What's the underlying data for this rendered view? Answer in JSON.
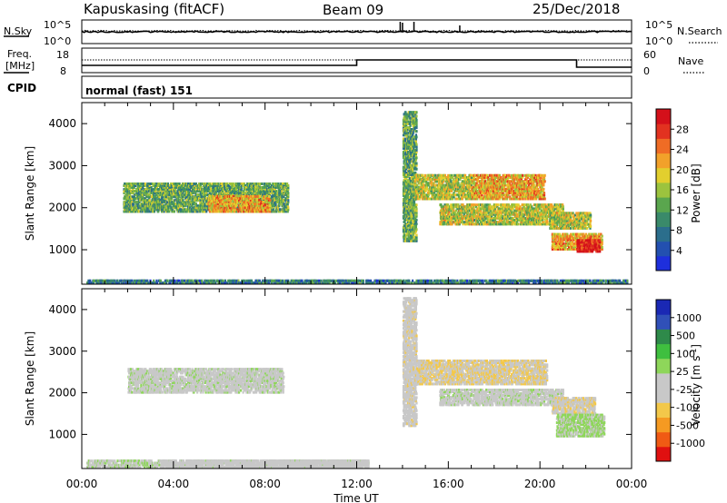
{
  "header": {
    "station": "Kapuskasing (fitACF)",
    "beam": "Beam 09",
    "date": "25/Dec/2018"
  },
  "strips": {
    "nsky_label": "N.Sky",
    "nsky_ticks": [
      "10^5",
      "10^0"
    ],
    "nsearch_label": "N.Search",
    "nsearch_ticks": [
      "10^5",
      "10^0"
    ],
    "freq_label_line1": "Freq.",
    "freq_label_line2": "[MHz]",
    "freq_ticks": [
      "18",
      "8"
    ],
    "nave_label": "Nave",
    "nave_ticks": [
      "60",
      "0"
    ],
    "cpid_label": "CPID",
    "cpid_value": "normal (fast) 151"
  },
  "colors": {
    "power": [
      "#1e2fdc",
      "#2350b0",
      "#2b6e8c",
      "#3a8a6a",
      "#5aa64e",
      "#9cc33e",
      "#e2cf2e",
      "#f2a12a",
      "#ef6c25",
      "#e23220",
      "#d4101a"
    ],
    "velocity": [
      "#e01010",
      "#f05a14",
      "#f59a22",
      "#f3c84a",
      "#c8c8c8",
      "#c8c8c8",
      "#8ed65a",
      "#3fbf3f",
      "#2e8a4a",
      "#3050b8",
      "#1a28b4"
    ]
  },
  "chart_data": [
    {
      "type": "heatmap",
      "title": "",
      "xlabel": "Time UT",
      "ylabel": "Slant Range [km]",
      "xticks": [
        "00:00",
        "04:00",
        "08:00",
        "12:00",
        "16:00",
        "20:00",
        "00:00"
      ],
      "xlim_hours": [
        0,
        24
      ],
      "yticks": [
        "1000",
        "2000",
        "3000",
        "4000"
      ],
      "ylim": [
        180,
        4500
      ],
      "colorbar_label": "Power [dB]",
      "colorbar_ticks": [
        "4",
        "8",
        "12",
        "16",
        "20",
        "24",
        "28"
      ],
      "colorbar_range": [
        0,
        30
      ],
      "regions": [
        {
          "t": [
            0.2,
            23.8
          ],
          "range": [
            200,
            300
          ],
          "value": 8
        },
        {
          "t": [
            1.8,
            9.0
          ],
          "range": [
            1900,
            2600
          ],
          "value": 12
        },
        {
          "t": [
            5.5,
            8.2
          ],
          "range": [
            1900,
            2300
          ],
          "value": 20
        },
        {
          "t": [
            14.0,
            14.6
          ],
          "range": [
            1200,
            4300
          ],
          "value": 12
        },
        {
          "t": [
            14.5,
            17.0
          ],
          "range": [
            2200,
            2800
          ],
          "value": 16
        },
        {
          "t": [
            17.0,
            20.2
          ],
          "range": [
            2200,
            2800
          ],
          "value": 20
        },
        {
          "t": [
            15.6,
            21.0
          ],
          "range": [
            1600,
            2100
          ],
          "value": 16
        },
        {
          "t": [
            20.4,
            22.2
          ],
          "range": [
            1500,
            1900
          ],
          "value": 16
        },
        {
          "t": [
            20.5,
            22.7
          ],
          "range": [
            1000,
            1400
          ],
          "value": 20
        },
        {
          "t": [
            21.6,
            22.6
          ],
          "range": [
            950,
            1250
          ],
          "value": 28
        }
      ]
    },
    {
      "type": "heatmap",
      "title": "",
      "xlabel": "Time UT",
      "ylabel": "Slant Range [km]",
      "xticks": [
        "00:00",
        "04:00",
        "08:00",
        "12:00",
        "16:00",
        "20:00",
        "00:00"
      ],
      "xlim_hours": [
        0,
        24
      ],
      "yticks": [
        "1000",
        "2000",
        "3000",
        "4000"
      ],
      "ylim": [
        180,
        4500
      ],
      "colorbar_label": "Velocity [m s^-1]",
      "colorbar_ticks": [
        "-1000",
        "-500",
        "-100",
        "-25",
        "25",
        "100",
        "500",
        "1000"
      ],
      "colorbar_range": [
        -1200,
        1200
      ],
      "regions": [
        {
          "t": [
            0.2,
            12.5
          ],
          "range": [
            200,
            400
          ],
          "value": 50
        },
        {
          "t": [
            3.5,
            12.5
          ],
          "range": [
            200,
            400
          ],
          "value": -80
        },
        {
          "t": [
            2.0,
            8.8
          ],
          "range": [
            2000,
            2600
          ],
          "value": 0
        },
        {
          "t": [
            14.0,
            14.6
          ],
          "range": [
            1200,
            4300
          ],
          "value": -200
        },
        {
          "t": [
            14.6,
            20.3
          ],
          "range": [
            2200,
            2800
          ],
          "value": -300
        },
        {
          "t": [
            15.6,
            21.0
          ],
          "range": [
            1700,
            2100
          ],
          "value": 0
        },
        {
          "t": [
            20.5,
            22.4
          ],
          "range": [
            1500,
            1900
          ],
          "value": -250
        },
        {
          "t": [
            20.7,
            22.8
          ],
          "range": [
            950,
            1500
          ],
          "value": 120
        }
      ]
    }
  ]
}
